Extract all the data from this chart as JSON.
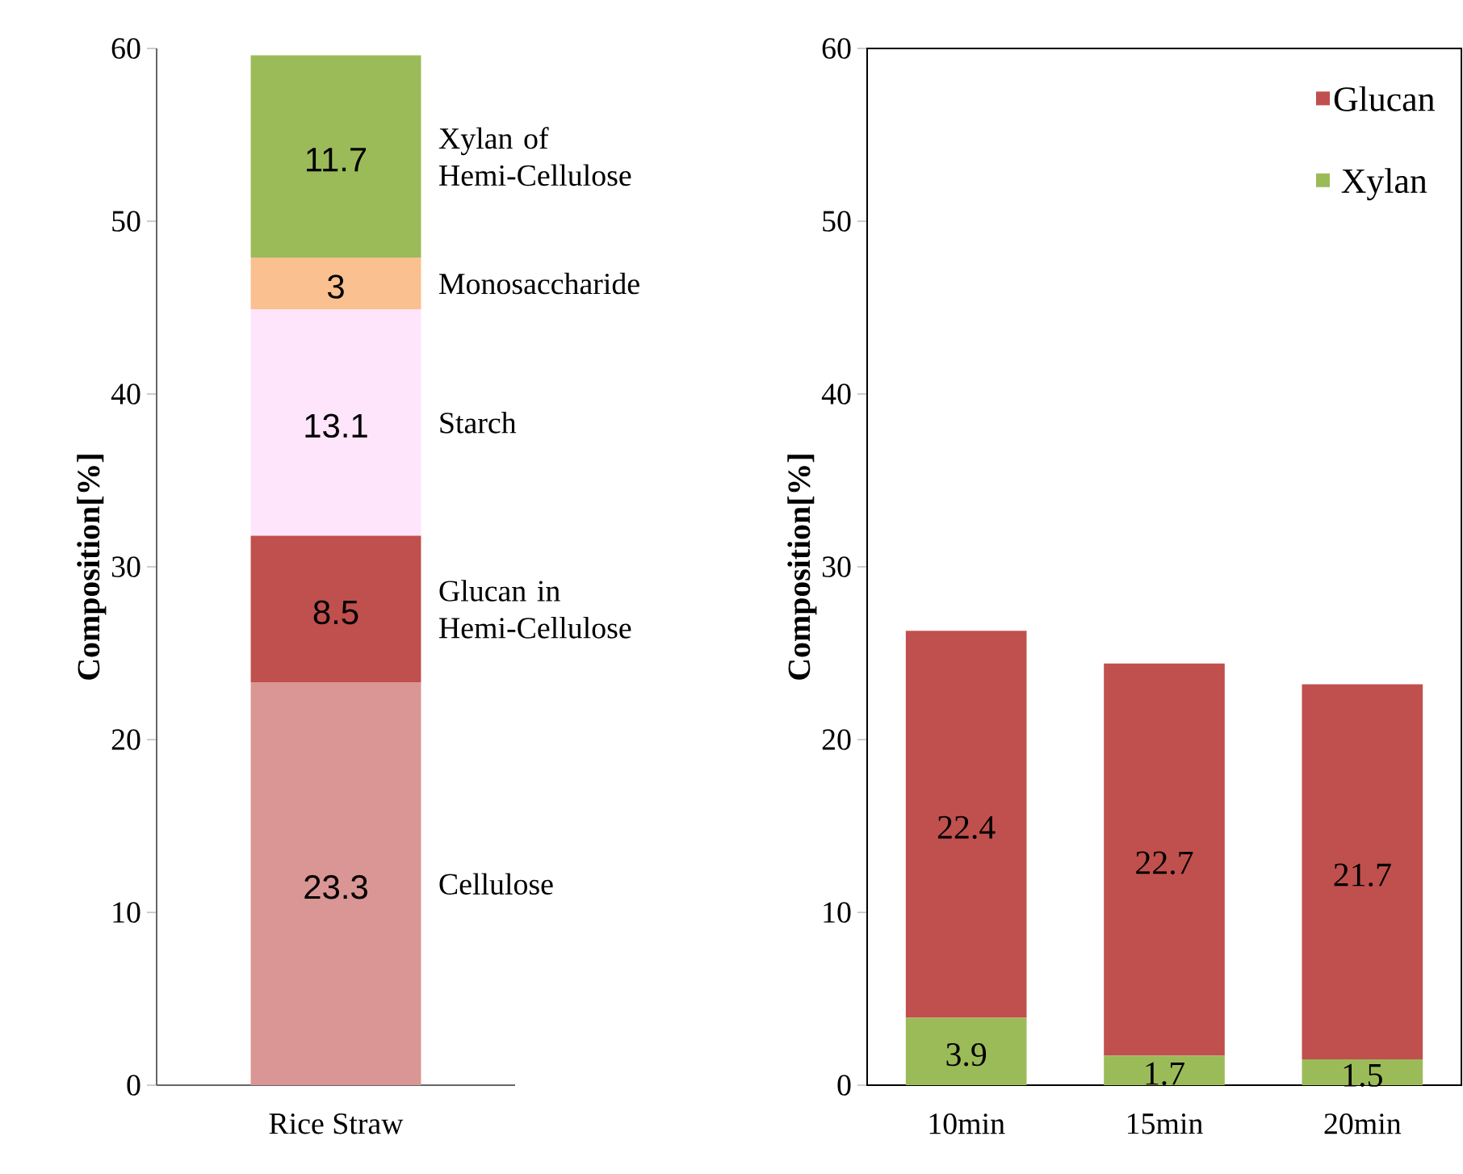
{
  "chart_data": [
    {
      "type": "bar",
      "stacked": true,
      "categories": [
        "Rice Straw"
      ],
      "ylabel": "Composition[%]",
      "ylim": [
        0,
        60
      ],
      "yticks": [
        0,
        10,
        20,
        30,
        40,
        50,
        60
      ],
      "data_labels": true,
      "legend": false,
      "series": [
        {
          "name": "Cellulose",
          "color": "#d99694",
          "values": [
            23.3
          ]
        },
        {
          "name": "Glucan in Hemi-Cellulose",
          "color": "#c0504d",
          "values": [
            8.5
          ]
        },
        {
          "name": "Starch",
          "color": "#ffe5fc",
          "values": [
            13.1
          ]
        },
        {
          "name": "Monosaccharide",
          "color": "#fac090",
          "values": [
            3
          ]
        },
        {
          "name": "Xylan of Hemi-Cellulose",
          "color": "#9bbb59",
          "values": [
            11.7
          ]
        }
      ]
    },
    {
      "type": "bar",
      "stacked": true,
      "categories": [
        "10min",
        "15min",
        "20min"
      ],
      "ylabel": "Composition[%]",
      "ylim": [
        0,
        60
      ],
      "yticks": [
        0,
        10,
        20,
        30,
        40,
        50,
        60
      ],
      "data_labels": true,
      "legend": "top right",
      "series": [
        {
          "name": "Xylan",
          "color": "#9bbb59",
          "values": [
            3.9,
            1.7,
            1.5
          ]
        },
        {
          "name": "Glucan",
          "color": "#c0504d",
          "values": [
            22.4,
            22.7,
            21.7
          ]
        }
      ]
    }
  ]
}
